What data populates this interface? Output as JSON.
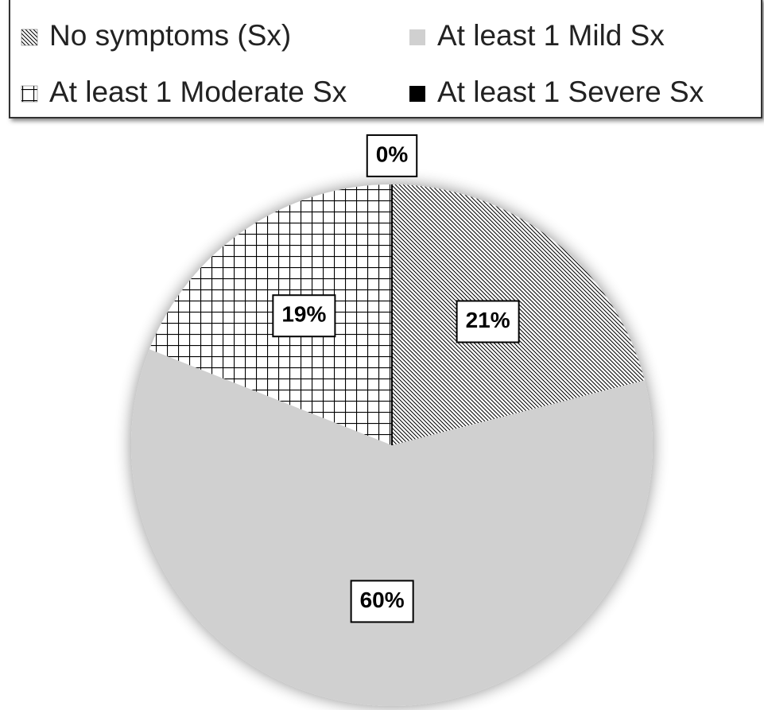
{
  "chart_data": {
    "type": "pie",
    "categories": [
      "No symptoms (Sx)",
      "At least 1 Mild Sx",
      "At least 1 Moderate Sx",
      "At least 1 Severe Sx"
    ],
    "values": [
      21,
      60,
      19,
      0
    ],
    "value_labels": [
      "21%",
      "60%",
      "19%",
      "0%"
    ],
    "colors": [
      "#000000",
      "#d0d0d0",
      "#000000",
      "#000000"
    ],
    "patterns": [
      "diagonal",
      null,
      "grid",
      null
    ],
    "legend": "top"
  }
}
